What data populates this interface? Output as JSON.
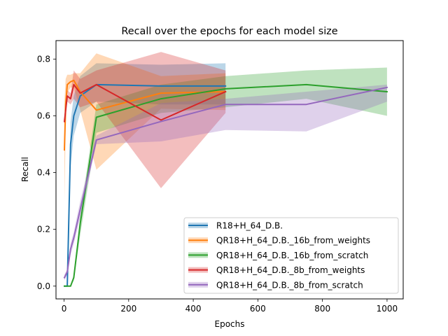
{
  "chart_data": {
    "type": "line",
    "title": "Recall over the epochs for each model size",
    "xlabel": "Epochs",
    "ylabel": "Recall",
    "xlim": [
      -25,
      1050
    ],
    "ylim": [
      -0.045,
      0.865
    ],
    "xticks": [
      0,
      200,
      400,
      600,
      800,
      1000
    ],
    "xtick_labels": [
      "0",
      "200",
      "400",
      "600",
      "800",
      "1000"
    ],
    "yticks": [
      0.0,
      0.2,
      0.4,
      0.6,
      0.8
    ],
    "ytick_labels": [
      "0.0",
      "0.2",
      "0.4",
      "0.6",
      "0.8"
    ],
    "grid": false,
    "legend_position": "lower-right",
    "series": [
      {
        "name": "R18+H_64_D.B.",
        "color": "#1f77b4",
        "x": [
          1,
          10,
          20,
          30,
          50,
          100,
          300,
          500
        ],
        "y": [
          0.0,
          0.0,
          0.5,
          0.6,
          0.67,
          0.71,
          0.705,
          0.705
        ],
        "lower": [
          0.0,
          0.0,
          0.42,
          0.53,
          0.61,
          0.65,
          0.64,
          0.64
        ],
        "upper": [
          0.0,
          0.0,
          0.58,
          0.67,
          0.74,
          0.785,
          0.78,
          0.785
        ]
      },
      {
        "name": "QR18+H_64_D.B._16b_from_weights",
        "color": "#ff7f0e",
        "x": [
          1,
          5,
          10,
          20,
          30,
          50,
          100,
          300,
          500
        ],
        "y": [
          0.48,
          0.64,
          0.71,
          0.72,
          0.725,
          0.685,
          0.62,
          0.68,
          0.685
        ],
        "lower": [
          0.3,
          0.55,
          0.68,
          0.7,
          0.7,
          0.62,
          0.41,
          0.625,
          0.62
        ],
        "upper": [
          0.65,
          0.73,
          0.745,
          0.745,
          0.75,
          0.75,
          0.82,
          0.74,
          0.75
        ]
      },
      {
        "name": "QR18+H_64_D.B._16b_from_scratch",
        "color": "#2ca02c",
        "x": [
          1,
          10,
          20,
          30,
          50,
          100,
          300,
          500,
          750,
          1000
        ],
        "y": [
          0.0,
          0.0,
          0.0,
          0.03,
          0.22,
          0.595,
          0.66,
          0.695,
          0.71,
          0.685
        ],
        "lower": [
          0.0,
          0.0,
          0.0,
          0.02,
          0.18,
          0.54,
          0.61,
          0.63,
          0.66,
          0.6
        ],
        "upper": [
          0.0,
          0.0,
          0.0,
          0.04,
          0.25,
          0.64,
          0.71,
          0.74,
          0.76,
          0.77
        ]
      },
      {
        "name": "QR18+H_64_D.B._8b_from_weights",
        "color": "#d62728",
        "x": [
          1,
          10,
          20,
          30,
          50,
          100,
          300,
          500
        ],
        "y": [
          0.58,
          0.67,
          0.66,
          0.71,
          0.68,
          0.71,
          0.585,
          0.685
        ],
        "lower": [
          0.57,
          0.65,
          0.64,
          0.66,
          0.63,
          0.65,
          0.345,
          0.61
        ],
        "upper": [
          0.6,
          0.69,
          0.68,
          0.76,
          0.73,
          0.76,
          0.825,
          0.76
        ]
      },
      {
        "name": "QR18+H_64_D.B._8b_from_scratch",
        "color": "#9467bd",
        "x": [
          1,
          10,
          20,
          30,
          50,
          100,
          300,
          500,
          750,
          1000
        ],
        "y": [
          0.03,
          0.05,
          0.13,
          0.17,
          0.27,
          0.515,
          0.58,
          0.64,
          0.64,
          0.7
        ],
        "lower": [
          0.02,
          0.04,
          0.11,
          0.15,
          0.24,
          0.5,
          0.51,
          0.55,
          0.545,
          0.65
        ],
        "upper": [
          0.04,
          0.06,
          0.15,
          0.19,
          0.3,
          0.53,
          0.645,
          0.66,
          0.685,
          0.71
        ]
      }
    ]
  }
}
